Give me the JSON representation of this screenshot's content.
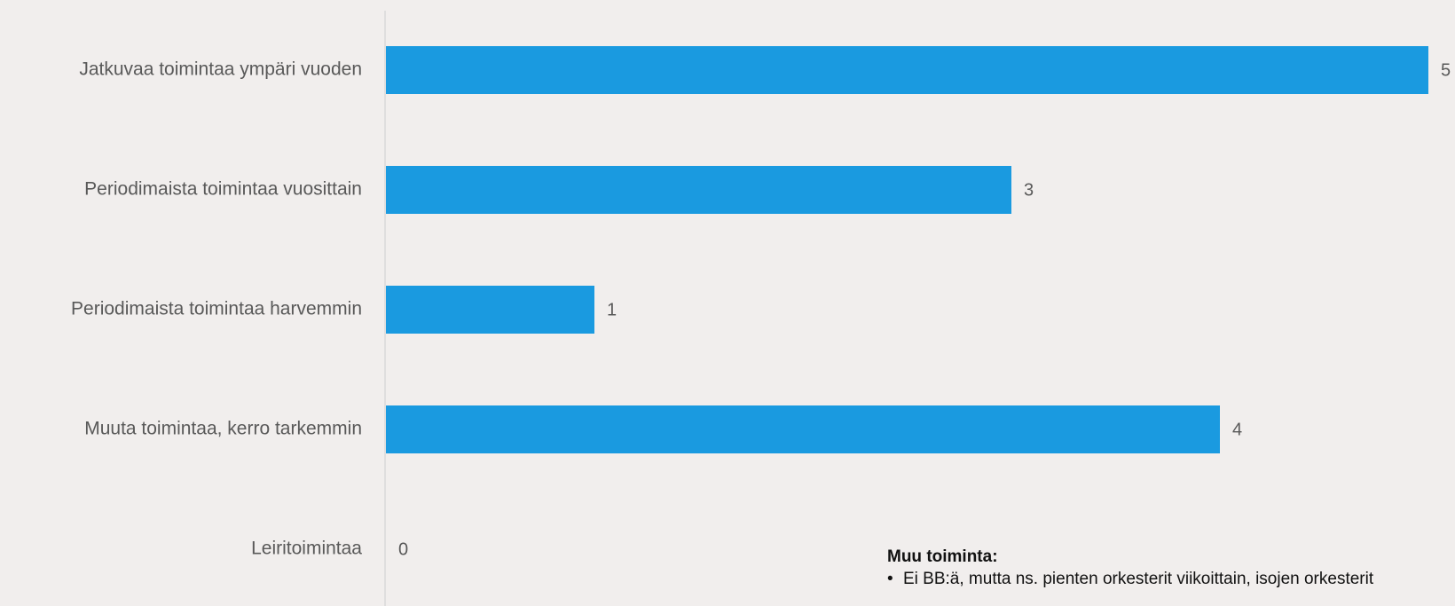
{
  "chart_data": {
    "type": "bar",
    "orientation": "horizontal",
    "categories": [
      "Jatkuvaa toimintaa ympäri vuoden",
      "Periodimaista toimintaa vuosittain",
      "Periodimaista toimintaa harvemmin",
      "Muuta toimintaa, kerro tarkemmin",
      "Leiritoimintaa"
    ],
    "values": [
      5,
      3,
      1,
      4,
      0
    ],
    "xlim": [
      0,
      5
    ],
    "grid": false,
    "legend": "none",
    "bar_color": "#1a9ae0",
    "axis_color": "#d9d9d9",
    "label_color": "#595959"
  },
  "note": {
    "title": "Muu toiminta:",
    "items": [
      "Ei BB:ä, mutta ns. pienten orkesterit viikoittain, isojen orkesterit"
    ]
  }
}
